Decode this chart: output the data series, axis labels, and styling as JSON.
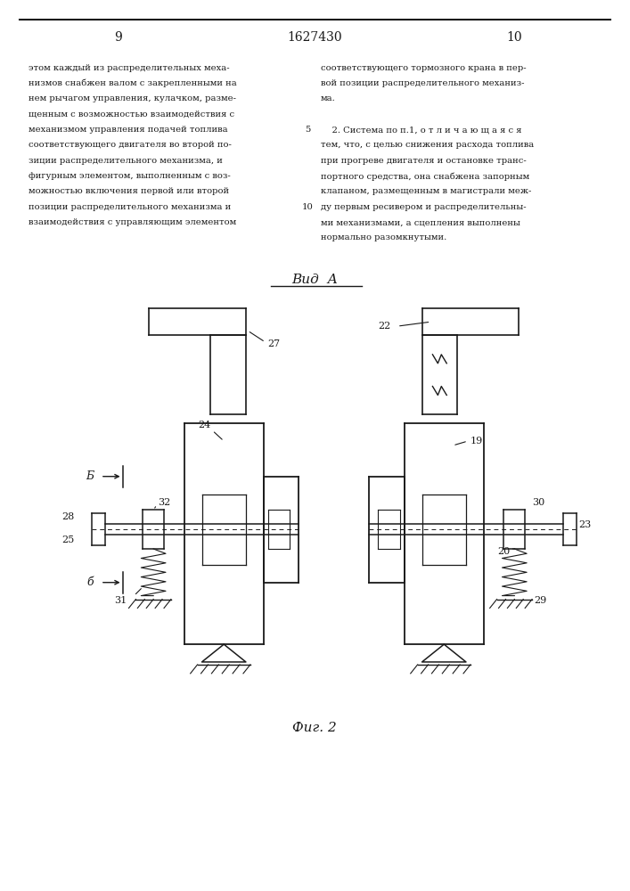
{
  "page_width": 7.07,
  "page_height": 10.0,
  "bg_color": "#ffffff",
  "line_color": "#1a1a1a",
  "text_color": "#1a1a1a",
  "page_num_left": "9",
  "page_num_center": "1627430",
  "page_num_right": "10",
  "left_col_text": [
    "этом каждый из распределительных меха-",
    "низмов снабжен валом с закрепленными на",
    "нем рычагом управления, кулачком, разме-",
    "щенным с возможностью взаимодействия с",
    "механизмом управления подачей топлива",
    "соответствующего двигателя во второй по-",
    "зиции распределительного механизма, и",
    "фигурным элементом, выполненным с воз-",
    "можностью включения первой или второй",
    "позиции распределительного механизма и",
    "взаимодействия с управляющим элементом"
  ],
  "right_col_text": [
    "соответствующего тормозного крана в пер-",
    "вой позиции распределительного механиз-",
    "ма.",
    "",
    "    2. Система по п.1, о т л и ч а ю щ а я с я",
    "тем, что, с целью снижения расхода топлива",
    "при прогреве двигателя и остановке транс-",
    "портного средства, она снабжена запорным",
    "клапаном, размещенным в магистрали меж-",
    "ду первым ресивером и распределительны-",
    "ми механизмами, а сцепления выполнены",
    "нормально разомкнутыми."
  ],
  "line_num_5_row": 4,
  "line_num_10_row": 9
}
